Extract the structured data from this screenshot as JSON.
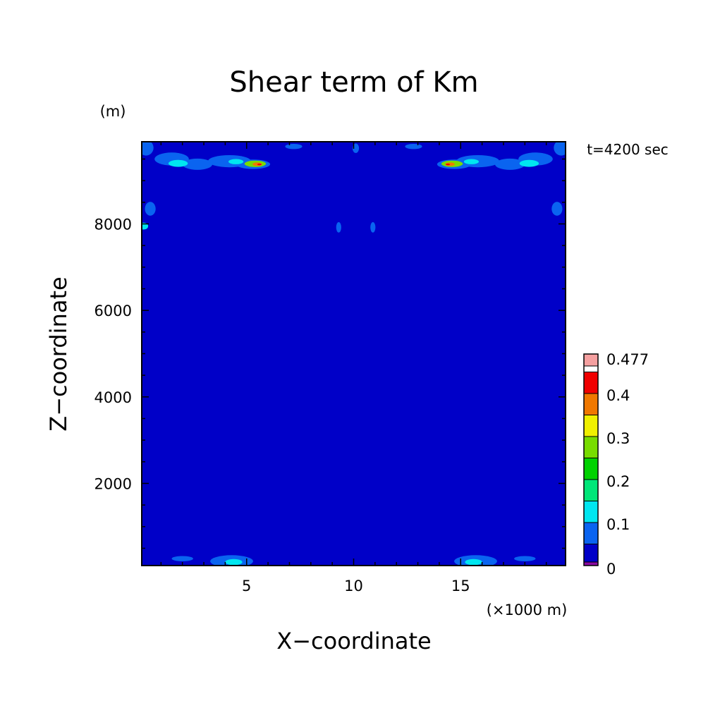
{
  "chart_data": {
    "type": "heatmap",
    "title": "Shear term of Km",
    "xlabel": "X−coordinate",
    "ylabel": "Z−coordinate",
    "x_unit": "(×1000 m)",
    "y_unit": "(m)",
    "time_label": "t=4200 sec",
    "xlim": [
      0.1,
      19.9
    ],
    "ylim": [
      100,
      9900
    ],
    "x_ticks": [
      5,
      10,
      15
    ],
    "x_tick_labels": [
      "5",
      "10",
      "15"
    ],
    "y_ticks": [
      2000,
      4000,
      6000,
      8000
    ],
    "y_tick_labels": [
      "2000",
      "4000",
      "6000",
      "8000"
    ],
    "background_value": 0.03,
    "colorbar": {
      "levels": [
        0,
        0.05,
        0.1,
        0.15,
        0.2,
        0.25,
        0.3,
        0.35,
        0.4,
        0.45,
        0.477
      ],
      "colors": [
        "#8a0aa0",
        "#0000c8",
        "#0a64f0",
        "#00e6f0",
        "#00e678",
        "#00d200",
        "#78dc00",
        "#f0f000",
        "#f07800",
        "#f00000",
        "#f5a0a0"
      ],
      "labels": [
        {
          "value": 0,
          "text": "0"
        },
        {
          "value": 0.1,
          "text": "0.1"
        },
        {
          "value": 0.2,
          "text": "0.2"
        },
        {
          "value": 0.3,
          "text": "0.3"
        },
        {
          "value": 0.4,
          "text": "0.4"
        },
        {
          "value": 0.477,
          "text": "0.477"
        }
      ]
    },
    "features": [
      {
        "x": 1.5,
        "z": 9500,
        "rx": 0.8,
        "rz": 150,
        "value": 0.07
      },
      {
        "x": 2.7,
        "z": 9380,
        "rx": 0.7,
        "rz": 130,
        "value": 0.07
      },
      {
        "x": 4.2,
        "z": 9450,
        "rx": 1.0,
        "rz": 140,
        "value": 0.07
      },
      {
        "x": 5.3,
        "z": 9380,
        "rx": 0.8,
        "rz": 110,
        "value": 0.08
      },
      {
        "x": 1.8,
        "z": 9400,
        "rx": 0.45,
        "rz": 80,
        "value": 0.12
      },
      {
        "x": 4.5,
        "z": 9440,
        "rx": 0.35,
        "rz": 60,
        "value": 0.12
      },
      {
        "x": 5.4,
        "z": 9390,
        "rx": 0.5,
        "rz": 75,
        "value": 0.28
      },
      {
        "x": 5.5,
        "z": 9380,
        "rx": 0.22,
        "rz": 40,
        "value": 0.36
      },
      {
        "x": 5.6,
        "z": 9375,
        "rx": 0.1,
        "rz": 20,
        "value": 0.42
      },
      {
        "x": 18.5,
        "z": 9500,
        "rx": 0.8,
        "rz": 150,
        "value": 0.07
      },
      {
        "x": 17.3,
        "z": 9380,
        "rx": 0.7,
        "rz": 130,
        "value": 0.07
      },
      {
        "x": 15.8,
        "z": 9450,
        "rx": 1.0,
        "rz": 140,
        "value": 0.07
      },
      {
        "x": 14.7,
        "z": 9380,
        "rx": 0.8,
        "rz": 110,
        "value": 0.08
      },
      {
        "x": 18.2,
        "z": 9400,
        "rx": 0.45,
        "rz": 80,
        "value": 0.12
      },
      {
        "x": 15.5,
        "z": 9440,
        "rx": 0.35,
        "rz": 60,
        "value": 0.12
      },
      {
        "x": 14.6,
        "z": 9390,
        "rx": 0.5,
        "rz": 75,
        "value": 0.28
      },
      {
        "x": 14.5,
        "z": 9380,
        "rx": 0.22,
        "rz": 40,
        "value": 0.36
      },
      {
        "x": 14.4,
        "z": 9375,
        "rx": 0.1,
        "rz": 20,
        "value": 0.42
      },
      {
        "x": 0.3,
        "z": 9760,
        "rx": 0.35,
        "rz": 180,
        "value": 0.07
      },
      {
        "x": 19.7,
        "z": 9760,
        "rx": 0.35,
        "rz": 180,
        "value": 0.07
      },
      {
        "x": 7.2,
        "z": 9790,
        "rx": 0.4,
        "rz": 60,
        "value": 0.07
      },
      {
        "x": 12.8,
        "z": 9790,
        "rx": 0.4,
        "rz": 60,
        "value": 0.07
      },
      {
        "x": 10.1,
        "z": 9750,
        "rx": 0.15,
        "rz": 110,
        "value": 0.07
      },
      {
        "x": 0.5,
        "z": 8350,
        "rx": 0.25,
        "rz": 160,
        "value": 0.07
      },
      {
        "x": 19.5,
        "z": 8350,
        "rx": 0.25,
        "rz": 160,
        "value": 0.07
      },
      {
        "x": 0.2,
        "z": 7950,
        "rx": 0.2,
        "rz": 80,
        "value": 0.12
      },
      {
        "x": 9.3,
        "z": 7920,
        "rx": 0.12,
        "rz": 120,
        "value": 0.07
      },
      {
        "x": 10.9,
        "z": 7920,
        "rx": 0.12,
        "rz": 120,
        "value": 0.07
      },
      {
        "x": 10.1,
        "z": 4800,
        "rx": 0.4,
        "rz": 180,
        "value": 0.0
      },
      {
        "x": 10.15,
        "z": 6650,
        "rx": 0.15,
        "rz": 60,
        "value": 0.0
      },
      {
        "x": 10.15,
        "z": 5950,
        "rx": 0.08,
        "rz": 40,
        "value": 0.0
      },
      {
        "x": 10.1,
        "z": 3040,
        "rx": 0.25,
        "rz": 25,
        "value": 0.0
      },
      {
        "x": 8.5,
        "z": 7950,
        "rx": 0.3,
        "rz": 12,
        "value": 0.0
      },
      {
        "x": 11.7,
        "z": 7950,
        "rx": 0.3,
        "rz": 12,
        "value": 0.0
      },
      {
        "x": 4.3,
        "z": 200,
        "rx": 1.0,
        "rz": 140,
        "value": 0.07
      },
      {
        "x": 4.4,
        "z": 180,
        "rx": 0.4,
        "rz": 70,
        "value": 0.12
      },
      {
        "x": 15.7,
        "z": 200,
        "rx": 1.0,
        "rz": 140,
        "value": 0.07
      },
      {
        "x": 15.6,
        "z": 180,
        "rx": 0.4,
        "rz": 70,
        "value": 0.12
      },
      {
        "x": 2.0,
        "z": 260,
        "rx": 0.5,
        "rz": 60,
        "value": 0.07
      },
      {
        "x": 18.0,
        "z": 260,
        "rx": 0.5,
        "rz": 60,
        "value": 0.07
      }
    ]
  }
}
